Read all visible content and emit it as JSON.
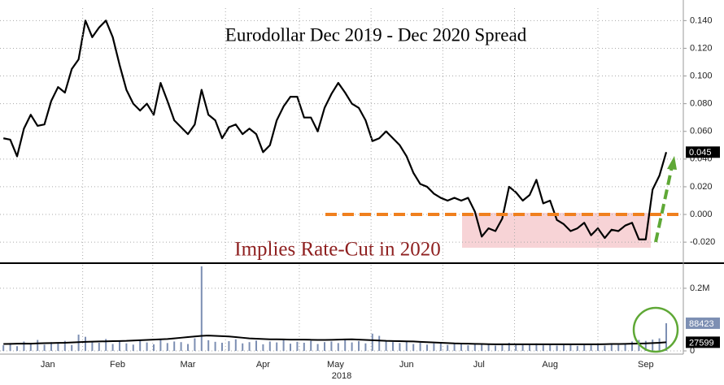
{
  "chart_data": [
    {
      "type": "line",
      "title": "Eurodollar Dec 2019 - Dec 2020 Spread",
      "annotation": "Implies Rate-Cut in 2020",
      "color": "#000000",
      "values": [
        0.055,
        0.054,
        0.042,
        0.062,
        0.072,
        0.064,
        0.065,
        0.082,
        0.092,
        0.088,
        0.105,
        0.112,
        0.14,
        0.128,
        0.135,
        0.14,
        0.128,
        0.108,
        0.09,
        0.08,
        0.075,
        0.08,
        0.072,
        0.095,
        0.082,
        0.068,
        0.063,
        0.058,
        0.065,
        0.09,
        0.072,
        0.068,
        0.055,
        0.063,
        0.065,
        0.058,
        0.062,
        0.058,
        0.045,
        0.05,
        0.068,
        0.078,
        0.085,
        0.085,
        0.07,
        0.07,
        0.06,
        0.077,
        0.087,
        0.095,
        0.088,
        0.08,
        0.077,
        0.068,
        0.053,
        0.055,
        0.06,
        0.055,
        0.05,
        0.042,
        0.03,
        0.022,
        0.02,
        0.015,
        0.012,
        0.01,
        0.012,
        0.01,
        0.012,
        0.002,
        -0.016,
        -0.01,
        -0.012,
        -0.003,
        0.02,
        0.016,
        0.01,
        0.014,
        0.025,
        0.008,
        0.01,
        -0.004,
        -0.007,
        -0.012,
        -0.01,
        -0.006,
        -0.015,
        -0.01,
        -0.017,
        -0.011,
        -0.012,
        -0.008,
        -0.006,
        -0.018,
        -0.018,
        0.018,
        0.028,
        0.045
      ],
      "xlim": [
        -0.5,
        99.5
      ],
      "ylim": [
        -0.034,
        0.149
      ],
      "yticks": [
        {
          "value": 0.14,
          "label": "0.140"
        },
        {
          "value": 0.12,
          "label": "0.120"
        },
        {
          "value": 0.1,
          "label": "0.100"
        },
        {
          "value": 0.08,
          "label": "0.080"
        },
        {
          "value": 0.06,
          "label": "0.060"
        },
        {
          "value": 0.04,
          "label": "0.040"
        },
        {
          "value": 0.02,
          "label": "0.020"
        },
        {
          "value": 0,
          "label": "0.000"
        },
        {
          "value": -0.02,
          "label": "-0.020"
        }
      ],
      "grid": true
    },
    {
      "type": "bar",
      "xlabel": "2018",
      "xlim": [
        -0.5,
        99.5
      ],
      "ylim": [
        0,
        275000
      ],
      "yticks": [
        {
          "value": 200000,
          "label": "0.2M"
        },
        0
      ],
      "xticks": [
        {
          "value": 6.5,
          "label": "Jan"
        },
        {
          "value": 16.7,
          "label": "Feb"
        },
        {
          "value": 27,
          "label": "Mar"
        },
        {
          "value": 38,
          "label": "Apr"
        },
        {
          "value": 48.6,
          "label": "May"
        },
        {
          "value": 59,
          "label": "Jun"
        },
        {
          "value": 69.6,
          "label": "Jul"
        },
        {
          "value": 80,
          "label": "Aug"
        },
        {
          "value": 94,
          "label": "Sep"
        }
      ],
      "grid": true,
      "series": [
        {
          "color": "#7d8fb3",
          "values": [
            18000,
            25000,
            15000,
            30000,
            22000,
            35000,
            20000,
            28000,
            24000,
            32000,
            19000,
            52000,
            45000,
            30000,
            26000,
            38000,
            22000,
            30000,
            24000,
            20000,
            33000,
            27000,
            21000,
            36000,
            25000,
            30000,
            28000,
            22000,
            40000,
            270000,
            34000,
            29000,
            26000,
            31000,
            37000,
            24000,
            28000,
            33000,
            21000,
            30000,
            27000,
            35000,
            23000,
            29000,
            26000,
            32000,
            22000,
            28000,
            30000,
            25000,
            36000,
            27000,
            31000,
            24000,
            55000,
            48000,
            33000,
            28000,
            25000,
            30000,
            22000,
            26000,
            20000,
            24000,
            27000,
            19000,
            22000,
            25000,
            18000,
            21000,
            24000,
            20000,
            17000,
            23000,
            26000,
            19000,
            22000,
            20000,
            24000,
            18000,
            21000,
            17000,
            23000,
            19000,
            16000,
            22000,
            18000,
            20000,
            17000,
            21000,
            19000,
            24000,
            30000,
            35000,
            32000,
            36000,
            40000,
            88423
          ]
        },
        {
          "color": "#000000",
          "values": [
            22000,
            22500,
            23000,
            23500,
            23000,
            24000,
            24500,
            25000,
            25500,
            26000,
            27000,
            28000,
            29000,
            29500,
            30000,
            30500,
            31000,
            31500,
            32000,
            33000,
            34000,
            35000,
            36000,
            37000,
            38000,
            40000,
            42000,
            44000,
            46000,
            48000,
            49000,
            48000,
            47000,
            46000,
            44000,
            42000,
            40000,
            39000,
            38000,
            37000,
            37000,
            36500,
            36000,
            36000,
            36000,
            35500,
            35000,
            35000,
            35500,
            36000,
            36500,
            37000,
            36000,
            35000,
            34000,
            33000,
            32000,
            31500,
            31000,
            30500,
            30000,
            29000,
            28000,
            27000,
            26000,
            25000,
            24000,
            23500,
            23000,
            22500,
            22000,
            21500,
            21000,
            21000,
            21000,
            21000,
            21000,
            21000,
            21000,
            21000,
            21000,
            21000,
            21000,
            21000,
            21000,
            21000,
            21000,
            21000,
            21500,
            22000,
            22000,
            22500,
            23000,
            23500,
            24000,
            25000,
            26000,
            27599
          ]
        }
      ]
    }
  ]
}
